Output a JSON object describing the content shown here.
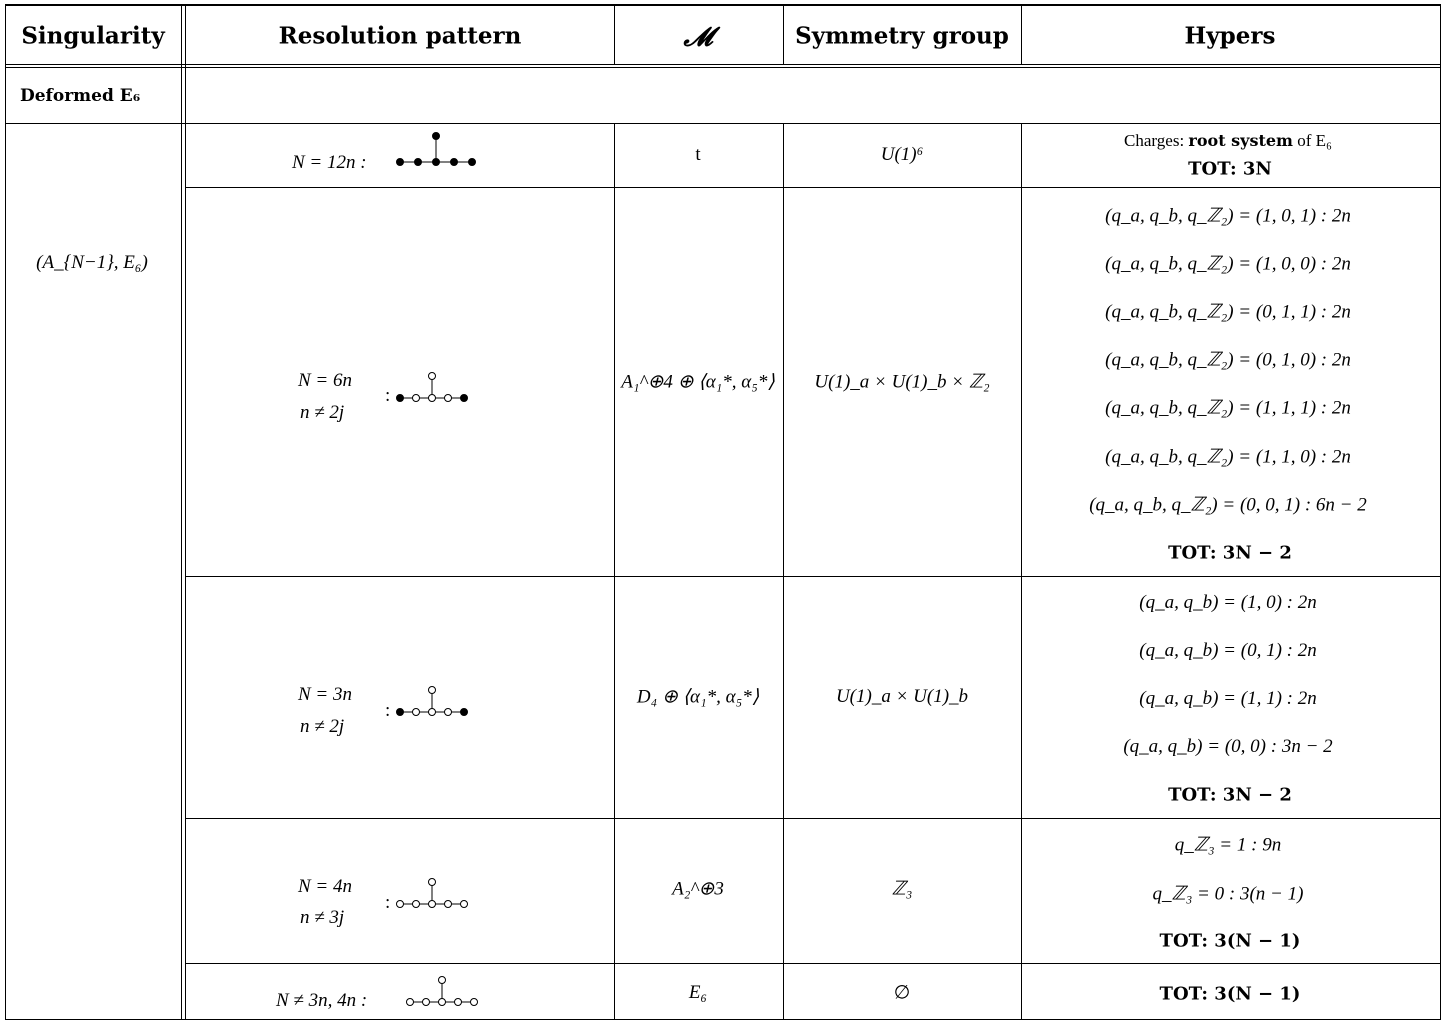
{
  "headers": {
    "singularity": "Singularity",
    "resolution": "Resolution pattern",
    "M": "𝓜",
    "symmetry": "Symmetry group",
    "hypers": "Hypers"
  },
  "section_label": "Deformed E₆",
  "singularity_label": "(A_{N−1}, E₆)",
  "rows": [
    {
      "resolution": [
        "N = 12n :"
      ],
      "M": "t",
      "symmetry": "U(1)⁶",
      "hypers_pre": "Charges:",
      "hypers_bold": "root system",
      "hypers_post": "of E₆",
      "hypers_lines": [],
      "total": "TOT: 3N"
    },
    {
      "resolution": [
        "N = 6n",
        "n ≠ 2j",
        ":"
      ],
      "M": "A₁^⊕4 ⊕ ⟨α₁*, α₅*⟩",
      "symmetry": "U(1)_a × U(1)_b × ℤ₂",
      "hypers_lines": [
        "(q_a, q_b, q_ℤ₂) = (1, 0, 1) : 2n",
        "(q_a, q_b, q_ℤ₂) = (1, 0, 0) : 2n",
        "(q_a, q_b, q_ℤ₂) = (0, 1, 1) : 2n",
        "(q_a, q_b, q_ℤ₂) = (0, 1, 0) : 2n",
        "(q_a, q_b, q_ℤ₂) = (1, 1, 1) : 2n",
        "(q_a, q_b, q_ℤ₂) = (1, 1, 0) : 2n",
        "(q_a, q_b, q_ℤ₂) = (0, 0, 1) : 6n − 2"
      ],
      "total": "TOT: 3N − 2"
    },
    {
      "resolution": [
        "N = 3n",
        "n ≠ 2j",
        ":"
      ],
      "M": "D₄ ⊕ ⟨α₁*, α₅*⟩",
      "symmetry": "U(1)_a × U(1)_b",
      "hypers_lines": [
        "(q_a, q_b) = (1, 0) : 2n",
        "(q_a, q_b) = (0, 1) : 2n",
        "(q_a, q_b) = (1, 1) : 2n",
        "(q_a, q_b) = (0, 0) : 3n − 2"
      ],
      "total": "TOT: 3N − 2"
    },
    {
      "resolution": [
        "N = 4n",
        "n ≠ 3j",
        ":"
      ],
      "M": "A₂^⊕3",
      "symmetry": "ℤ₃",
      "hypers_lines": [
        "q_ℤ₃ = 1 : 9n",
        "q_ℤ₃ = 0 : 3(n − 1)"
      ],
      "total": "TOT: 3(N − 1)"
    },
    {
      "resolution": [
        "N ≠ 3n, 4n :"
      ],
      "M": "E₆",
      "symmetry": "∅",
      "hypers_lines": [],
      "total": "TOT: 3(N − 1)"
    }
  ],
  "dynkin_patterns": [
    {
      "row": 0,
      "filled": [
        true,
        true,
        true,
        true,
        true,
        true
      ]
    },
    {
      "row": 1,
      "filled": [
        true,
        false,
        false,
        false,
        true,
        false
      ]
    },
    {
      "row": 2,
      "filled": [
        true,
        false,
        false,
        false,
        true,
        false
      ]
    },
    {
      "row": 3,
      "filled": [
        false,
        false,
        false,
        false,
        false,
        false
      ]
    },
    {
      "row": 4,
      "filled": [
        false,
        false,
        false,
        false,
        false,
        false
      ]
    }
  ]
}
